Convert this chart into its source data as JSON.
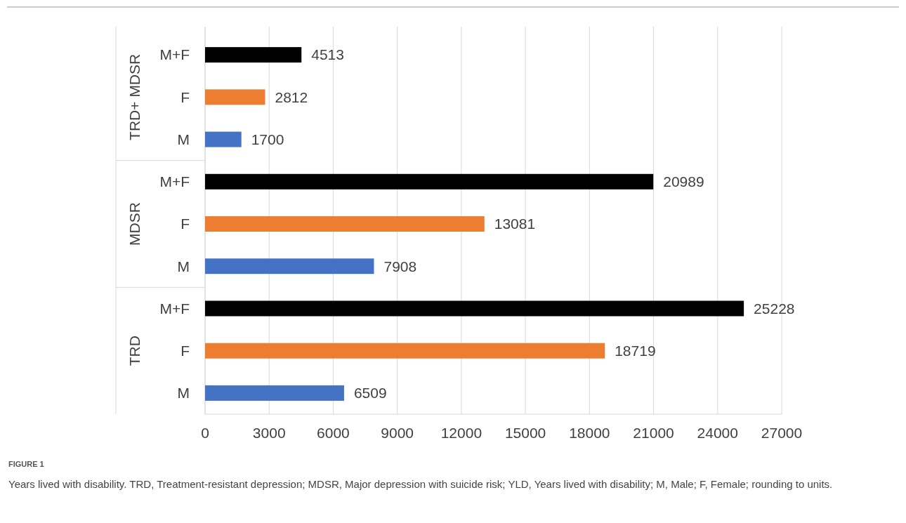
{
  "chart_data": {
    "type": "bar",
    "orientation": "horizontal",
    "title": "FIGURE 1",
    "subtitle": "Years lived with disability. TRD, Treatment-resistant depression; MDSR, Major depression with suicide risk; YLD, Years lived with disability; M, Male; F, Female; rounding to units.",
    "categories": [
      "M+F",
      "F",
      "M",
      "M+F",
      "F",
      "M",
      "M+F",
      "F",
      "M"
    ],
    "values": [
      4513,
      2812,
      1700,
      20989,
      13081,
      7908,
      25228,
      18719,
      6509
    ],
    "colors": [
      "#000000",
      "#ed7d31",
      "#4472c4",
      "#000000",
      "#ed7d31",
      "#4472c4",
      "#000000",
      "#ed7d31",
      "#4472c4"
    ],
    "annotations": [
      "TRD+ MDSR",
      "MDSR",
      "TRD"
    ],
    "xlim": [
      0,
      27000
    ],
    "xticks": [
      0,
      3000,
      6000,
      9000,
      12000,
      15000,
      18000,
      21000,
      24000,
      27000
    ],
    "grid": "x",
    "data_labels": true
  }
}
